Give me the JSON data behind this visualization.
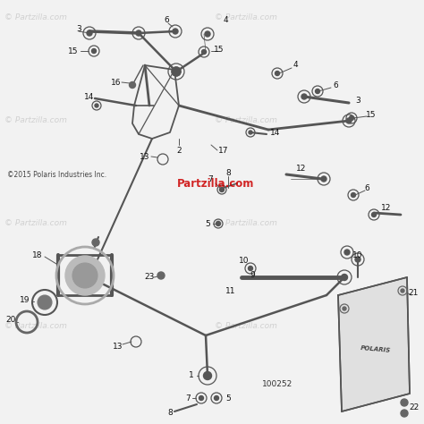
{
  "bg_color": "#f2f2f2",
  "line_color": "#555555",
  "label_color": "#111111",
  "label_fontsize": 6.5,
  "watermark_color": "#bbbbbb",
  "watermark_alpha": 0.6,
  "watermark_fontsize": 6.5,
  "copyright_text": "©2015 Polaris Industries Inc.",
  "partzilla_center_text": "Partzilla.com",
  "part_number": "100252",
  "figsize": [
    4.74,
    4.74
  ],
  "dpi": 100
}
